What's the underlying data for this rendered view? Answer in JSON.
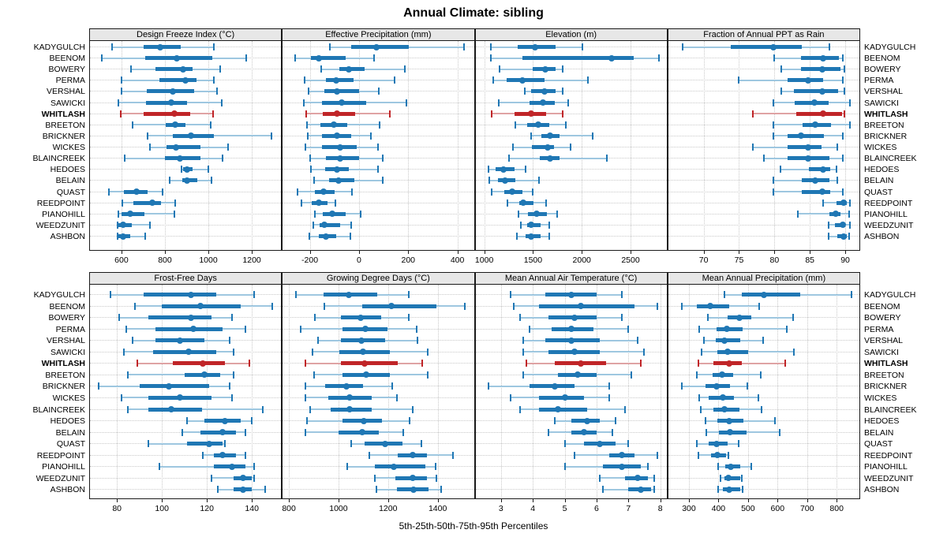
{
  "title": "Annual Climate: sibling",
  "footer": "5th-25th-50th-75th-95th Percentiles",
  "locations": [
    "KADYGULCH",
    "BEENOM",
    "BOWERY",
    "PERMA",
    "VERSHAL",
    "SAWICKI",
    "WHITLASH",
    "BREETON",
    "BRICKNER",
    "WICKES",
    "BLAINCREEK",
    "HEDOES",
    "BELAIN",
    "QUAST",
    "REEDPOINT",
    "PIANOHILL",
    "WEEDZUNIT",
    "ASHBON"
  ],
  "highlight_location": "WHITLASH",
  "colors": {
    "series": "#1f77b4",
    "series_light": "#9ec7e0",
    "highlight": "#c02528",
    "highlight_light": "#dfa3a4",
    "header_bg": "#e7e7e7",
    "border": "#1a1a1a",
    "grid": "#c9c9c9"
  },
  "chart_data": [
    {
      "type": "dot-whisker",
      "title": "Design Freeze Index (°C)",
      "percentiles": [
        5,
        25,
        50,
        75,
        95
      ],
      "xlim": [
        455,
        1335
      ],
      "ticks": [
        600,
        800,
        1000,
        1200
      ],
      "values": [
        [
          557,
          703,
          779,
          873,
          1027
        ],
        [
          510,
          710,
          855,
          1018,
          1175
        ],
        [
          645,
          758,
          885,
          927,
          1055
        ],
        [
          600,
          775,
          893,
          945,
          1025
        ],
        [
          600,
          715,
          835,
          933,
          1040
        ],
        [
          585,
          712,
          830,
          903,
          1060
        ],
        [
          598,
          701,
          845,
          915,
          1021
        ],
        [
          651,
          804,
          846,
          893,
          1011
        ],
        [
          719,
          835,
          921,
          1024,
          1290
        ],
        [
          730,
          806,
          852,
          964,
          1090
        ],
        [
          615,
          800,
          870,
          964,
          1064
        ],
        [
          876,
          882,
          903,
          927,
          1000
        ],
        [
          821,
          880,
          903,
          949,
          1015
        ],
        [
          542,
          612,
          670,
          719,
          788
        ],
        [
          604,
          655,
          742,
          782,
          848
        ],
        [
          585,
          602,
          639,
          706,
          842
        ],
        [
          583,
          585,
          607,
          648,
          730
        ],
        [
          583,
          586,
          606,
          640,
          709
        ]
      ]
    },
    {
      "type": "dot-whisker",
      "title": "Effective Precipitation (mm)",
      "percentiles": [
        5,
        25,
        50,
        75,
        95
      ],
      "xlim": [
        -310,
        467
      ],
      "ticks": [
        -200,
        0,
        200,
        400
      ],
      "values": [
        [
          -118,
          -33,
          71,
          202,
          428
        ],
        [
          -260,
          -195,
          -163,
          -55,
          61
        ],
        [
          -155,
          -80,
          -40,
          23,
          186
        ],
        [
          -220,
          -134,
          -92,
          -22,
          146
        ],
        [
          -205,
          -140,
          -90,
          -1,
          82
        ],
        [
          -223,
          -150,
          -70,
          29,
          193
        ],
        [
          -214,
          -148,
          -89,
          -17,
          127
        ],
        [
          -212,
          -156,
          -102,
          -49,
          84
        ],
        [
          -209,
          -152,
          -90,
          -33,
          47
        ],
        [
          -217,
          -150,
          -78,
          -9,
          76
        ],
        [
          -200,
          -134,
          -76,
          -1,
          95
        ],
        [
          -195,
          -138,
          -90,
          -42,
          76
        ],
        [
          -182,
          -120,
          -84,
          -20,
          97
        ],
        [
          -249,
          -180,
          -145,
          -99,
          -28
        ],
        [
          -233,
          -193,
          -163,
          -127,
          -97
        ],
        [
          -180,
          -148,
          -110,
          -54,
          8
        ],
        [
          -185,
          -161,
          -140,
          -78,
          -33
        ],
        [
          -202,
          -163,
          -134,
          -92,
          -35
        ]
      ]
    },
    {
      "type": "dot-whisker",
      "title": "Elevation (m)",
      "percentiles": [
        5,
        25,
        50,
        75,
        95
      ],
      "xlim": [
        910,
        2870
      ],
      "ticks": [
        1000,
        1500,
        2000,
        2500
      ],
      "values": [
        [
          1070,
          1341,
          1524,
          1731,
          2008
        ],
        [
          1065,
          1390,
          2308,
          2529,
          2790
        ],
        [
          1157,
          1497,
          1624,
          1731,
          1805
        ],
        [
          1094,
          1228,
          1395,
          1616,
          2062
        ],
        [
          1417,
          1481,
          1616,
          1731,
          1800
        ],
        [
          1152,
          1462,
          1605,
          1723,
          1857
        ],
        [
          1078,
          1309,
          1484,
          1632,
          1800
        ],
        [
          1320,
          1436,
          1557,
          1670,
          1838
        ],
        [
          1481,
          1589,
          1677,
          1772,
          2115
        ],
        [
          1296,
          1489,
          1651,
          1719,
          1885
        ],
        [
          1256,
          1570,
          1672,
          1772,
          2255
        ],
        [
          1041,
          1113,
          1194,
          1309,
          1427
        ],
        [
          1054,
          1140,
          1215,
          1320,
          1562
        ],
        [
          1078,
          1202,
          1288,
          1390,
          1497
        ],
        [
          1239,
          1355,
          1403,
          1508,
          1632
        ],
        [
          1349,
          1449,
          1535,
          1643,
          1750
        ],
        [
          1373,
          1436,
          1481,
          1578,
          1670
        ],
        [
          1336,
          1422,
          1481,
          1578,
          1670
        ]
      ]
    },
    {
      "type": "dot-whisker",
      "title": "Fraction of Annual PPT as Rain",
      "percentiles": [
        5,
        25,
        50,
        75,
        95
      ],
      "xlim": [
        65,
        92
      ],
      "ticks": [
        70,
        75,
        80,
        85,
        90
      ],
      "values": [
        [
          67,
          73.8,
          79.8,
          83.9,
          87.8
        ],
        [
          80,
          83.8,
          86.9,
          89.1,
          89.7
        ],
        [
          81,
          83.7,
          86.8,
          89.3,
          89.9
        ],
        [
          74.9,
          81.9,
          84.8,
          86.9,
          89.7
        ],
        [
          81,
          82.8,
          86.8,
          89,
          89.9
        ],
        [
          79.8,
          82.9,
          85.7,
          87.6,
          90.7
        ],
        [
          76.9,
          83.1,
          86.9,
          89.5,
          89.9
        ],
        [
          79.9,
          84,
          85.8,
          88,
          90.7
        ],
        [
          79.9,
          81.9,
          83.8,
          87,
          89.7
        ],
        [
          76.9,
          81.9,
          84.8,
          86.7,
          88.9
        ],
        [
          78.5,
          81.9,
          84.8,
          87.8,
          89.7
        ],
        [
          80.9,
          84.9,
          86.9,
          87.9,
          88.8
        ],
        [
          79.9,
          83.9,
          85.8,
          87.8,
          88.9
        ],
        [
          79.9,
          83.9,
          86.8,
          87.9,
          89.7
        ],
        [
          86.9,
          88.8,
          89.8,
          90.2,
          90.7
        ],
        [
          83.3,
          87.8,
          88.7,
          89.3,
          90.6
        ],
        [
          87.7,
          88.6,
          89.7,
          90,
          90.7
        ],
        [
          87.7,
          88.9,
          89.8,
          90.2,
          90.5
        ]
      ]
    },
    {
      "type": "dot-whisker",
      "title": "Frost-Free Days",
      "percentiles": [
        5,
        25,
        50,
        75,
        95
      ],
      "xlim": [
        68,
        153
      ],
      "ticks": [
        80,
        100,
        120,
        140
      ],
      "values": [
        [
          77,
          92,
          113,
          124,
          141
        ],
        [
          88,
          100,
          117,
          135,
          149
        ],
        [
          81,
          94,
          113,
          122,
          131
        ],
        [
          84,
          97,
          114,
          127,
          137
        ],
        [
          87,
          97,
          108,
          119,
          130
        ],
        [
          83,
          96,
          112,
          124,
          132
        ],
        [
          89,
          105,
          118,
          128,
          139
        ],
        [
          85,
          110,
          119,
          126,
          132
        ],
        [
          72,
          90,
          103,
          121,
          130
        ],
        [
          82,
          94,
          108,
          122,
          131
        ],
        [
          85,
          94,
          104,
          118,
          145
        ],
        [
          111,
          119,
          128,
          135,
          140
        ],
        [
          109,
          117,
          127,
          133,
          137
        ],
        [
          94,
          111,
          121,
          127,
          128
        ],
        [
          118,
          123,
          127,
          133,
          137
        ],
        [
          99,
          123,
          131,
          137,
          141
        ],
        [
          122,
          132,
          136,
          140,
          141
        ],
        [
          125,
          132,
          136,
          140,
          146
        ]
      ]
    },
    {
      "type": "dot-whisker",
      "title": "Growing Degree Days (°C)",
      "percentiles": [
        5,
        25,
        50,
        75,
        95
      ],
      "xlim": [
        775,
        1546
      ],
      "ticks": [
        800,
        1000,
        1200,
        1400
      ],
      "values": [
        [
          828,
          939,
          1041,
          1156,
          1285
        ],
        [
          944,
          1095,
          1214,
          1394,
          1510
        ],
        [
          904,
          1010,
          1090,
          1171,
          1283
        ],
        [
          847,
          1016,
          1108,
          1198,
          1316
        ],
        [
          917,
          1010,
          1092,
          1189,
          1320
        ],
        [
          896,
          1002,
          1100,
          1206,
          1359
        ],
        [
          865,
          1010,
          1105,
          1238,
          1337
        ],
        [
          902,
          1016,
          1111,
          1206,
          1359
        ],
        [
          868,
          945,
          1032,
          1100,
          1217
        ],
        [
          866,
          958,
          1045,
          1134,
          1236
        ],
        [
          887,
          968,
          1045,
          1134,
          1300
        ],
        [
          873,
          1016,
          1103,
          1175,
          1286
        ],
        [
          866,
          1000,
          1095,
          1162,
          1261
        ],
        [
          1050,
          1106,
          1187,
          1259,
          1335
        ],
        [
          1124,
          1240,
          1300,
          1357,
          1462
        ],
        [
          1035,
          1148,
          1222,
          1350,
          1392
        ],
        [
          1145,
          1230,
          1300,
          1357,
          1395
        ],
        [
          1153,
          1236,
          1304,
          1363,
          1413
        ]
      ]
    },
    {
      "type": "dot-whisker",
      "title": "Mean Annual Air Temperature (°C)",
      "percentiles": [
        5,
        25,
        50,
        75,
        95
      ],
      "xlim": [
        2.2,
        8.2
      ],
      "ticks": [
        3,
        4,
        5,
        6,
        7,
        8
      ],
      "values": [
        [
          3.3,
          4.4,
          5.2,
          6.0,
          6.8
        ],
        [
          3.4,
          4.2,
          5.5,
          7.2,
          7.9
        ],
        [
          3.6,
          4.5,
          5.3,
          6.0,
          6.8
        ],
        [
          3.9,
          4.6,
          5.2,
          5.9,
          7.0
        ],
        [
          3.7,
          4.4,
          5.2,
          6.1,
          7.3
        ],
        [
          3.7,
          4.5,
          5.3,
          6.1,
          7.5
        ],
        [
          3.8,
          4.7,
          5.5,
          6.3,
          7.4
        ],
        [
          3.7,
          4.8,
          5.4,
          6.0,
          7.1
        ],
        [
          2.6,
          3.9,
          4.7,
          5.3,
          6.4
        ],
        [
          3.3,
          4.2,
          5.0,
          5.6,
          6.4
        ],
        [
          3.6,
          4.2,
          4.8,
          5.7,
          6.9
        ],
        [
          4.7,
          5.2,
          5.7,
          6.1,
          6.6
        ],
        [
          4.5,
          5.2,
          5.6,
          6.0,
          6.5
        ],
        [
          5.0,
          5.6,
          6.1,
          6.6,
          7.0
        ],
        [
          5.3,
          6.4,
          6.8,
          7.2,
          7.9
        ],
        [
          5.0,
          6.2,
          6.8,
          7.4,
          7.6
        ],
        [
          6.1,
          6.9,
          7.3,
          7.6,
          7.8
        ],
        [
          6.2,
          7.0,
          7.4,
          7.7,
          7.8
        ]
      ]
    },
    {
      "type": "dot-whisker",
      "title": "Mean Annual Precipitation (mm)",
      "percentiles": [
        5,
        25,
        50,
        75,
        95
      ],
      "xlim": [
        230,
        877
      ],
      "ticks": [
        300,
        400,
        500,
        600,
        700,
        800
      ],
      "values": [
        [
          421,
          480,
          554,
          677,
          851
        ],
        [
          277,
          327,
          371,
          437,
          538
        ],
        [
          364,
          430,
          472,
          510,
          652
        ],
        [
          335,
          393,
          429,
          483,
          632
        ],
        [
          351,
          390,
          421,
          475,
          552
        ],
        [
          344,
          395,
          432,
          501,
          655
        ],
        [
          333,
          384,
          435,
          479,
          625
        ],
        [
          328,
          380,
          413,
          450,
          544
        ],
        [
          277,
          355,
          393,
          439,
          499
        ],
        [
          335,
          366,
          414,
          452,
          535
        ],
        [
          340,
          382,
          420,
          470,
          547
        ],
        [
          355,
          395,
          437,
          485,
          590
        ],
        [
          358,
          402,
          439,
          494,
          606
        ],
        [
          328,
          366,
          393,
          432,
          468
        ],
        [
          333,
          375,
          397,
          426,
          433
        ],
        [
          399,
          423,
          441,
          475,
          512
        ],
        [
          408,
          420,
          433,
          473,
          478
        ],
        [
          398,
          415,
          435,
          475,
          481
        ]
      ]
    }
  ]
}
